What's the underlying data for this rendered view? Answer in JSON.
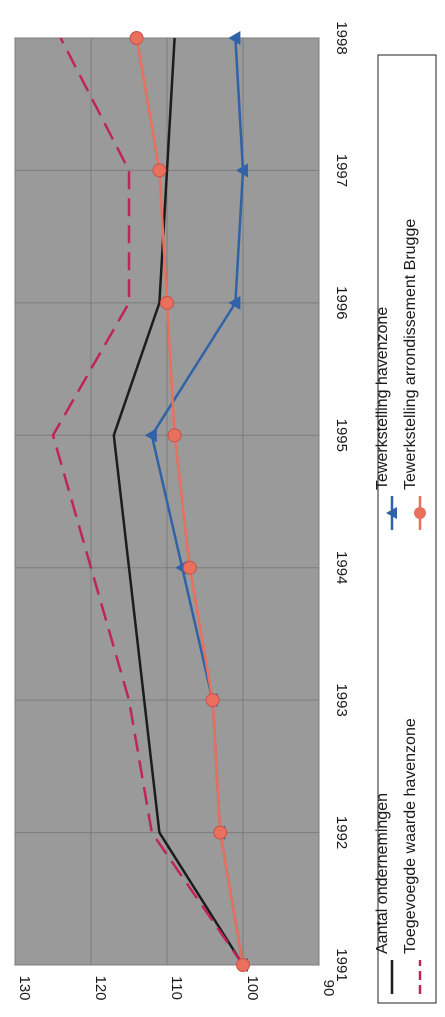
{
  "chart_data": {
    "type": "line",
    "orientation": "rotated-90-clockwise",
    "title": "",
    "xlabel": "",
    "ylabel": "",
    "x": [
      "1991",
      "1992",
      "1993",
      "1994",
      "1995",
      "1996",
      "1997",
      "1998"
    ],
    "ylim": [
      90,
      130
    ],
    "yticks": [
      "90",
      "100",
      "110",
      "120",
      "130"
    ],
    "grid": true,
    "plot_background": "#9a9a9a",
    "legend_position": "right",
    "series": [
      {
        "name": "Aantal ondernemingen",
        "values": [
          100,
          111,
          113,
          115,
          117,
          111,
          110,
          109
        ],
        "color": "#1c1c1c",
        "style": "solid",
        "marker": "none"
      },
      {
        "name": "Toegevoegde waarde havenzone",
        "values": [
          100,
          112,
          115,
          120,
          125,
          115,
          115,
          124
        ],
        "color": "#c0255a",
        "style": "dashed",
        "marker": "none"
      },
      {
        "name": "Tewerkstelling havenzone",
        "values": [
          100,
          103,
          104,
          108,
          112,
          101,
          100,
          101
        ],
        "color": "#2f62a7",
        "style": "solid",
        "marker": "triangle"
      },
      {
        "name": "Tewerkstelling arrondissement Brugge",
        "values": [
          100,
          103,
          104,
          107,
          109,
          110,
          111,
          114
        ],
        "color": "#e8705c",
        "style": "solid",
        "marker": "circle"
      }
    ]
  }
}
